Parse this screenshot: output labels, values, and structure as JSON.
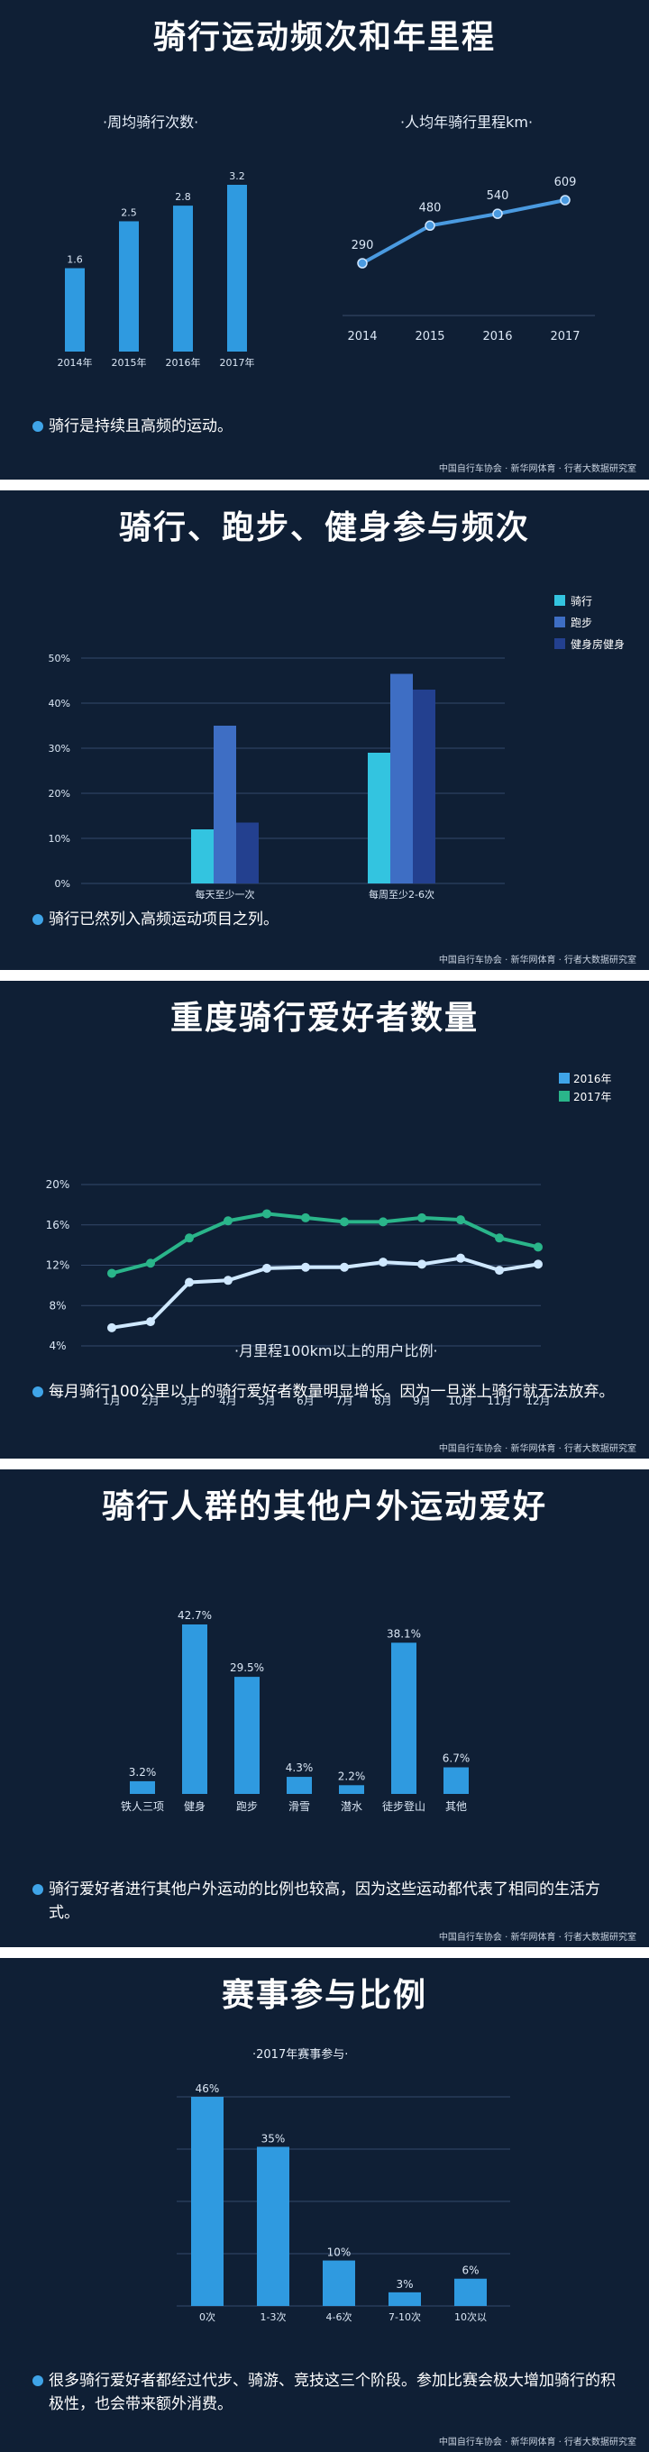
{
  "source": "中国自行车协会 · 新华网体育 · 行者大数据研究室",
  "sections": [
    {
      "title": "骑行运动频次和年里程",
      "note": "骑行是持续且高频的运动。",
      "left_sub": "·周均骑行次数·",
      "right_sub": "·人均年骑行里程km·"
    },
    {
      "title": "骑行、跑步、健身参与频次",
      "note": "骑行已然列入高频运动项目之列。"
    },
    {
      "title": "重度骑行爱好者数量",
      "note": "每月骑行100公里以上的骑行爱好者数量明显增长。因为一旦迷上骑行就无法放弃。",
      "sub": "·月里程100km以上的用户比例·"
    },
    {
      "title": "骑行人群的其他户外运动爱好",
      "note": "骑行爱好者进行其他户外运动的比例也较高，因为这些运动都代表了相同的生活方式。"
    },
    {
      "title": "赛事参与比例",
      "note": "很多骑行爱好者都经过代步、骑游、竞技这三个阶段。参加比赛会极大增加骑行的积极性，也会带来额外消费。",
      "sub": "·2017年赛事参与·"
    }
  ],
  "chart_data": [
    {
      "type": "bar",
      "categories": [
        "2014年",
        "2015年",
        "2016年",
        "2017年"
      ],
      "values": [
        1.6,
        2.5,
        2.8,
        3.2
      ],
      "labels": [
        "1.6",
        "2.5",
        "2.8",
        "3.2"
      ],
      "ylim": [
        0,
        3.2
      ],
      "color": "#2f9ae0"
    },
    {
      "type": "line",
      "x": [
        "2014",
        "2015",
        "2016",
        "2017"
      ],
      "values": [
        290,
        480,
        540,
        609
      ],
      "ylim": [
        290,
        609
      ],
      "color": "#4a9ae0"
    },
    {
      "type": "bar",
      "categories": [
        "每天至少一次",
        "每周至少2-6次"
      ],
      "series": [
        {
          "name": "骑行",
          "values": [
            12,
            29
          ],
          "color": "#33c4e0"
        },
        {
          "name": "跑步",
          "values": [
            35,
            46.5
          ],
          "color": "#3e6ec4"
        },
        {
          "name": "健身房健身",
          "values": [
            13.5,
            43
          ],
          "color": "#23408f"
        }
      ],
      "yticks": [
        "0%",
        "10%",
        "20%",
        "30%",
        "40%",
        "50%"
      ],
      "ylim": [
        0,
        50
      ],
      "legend": "top-right",
      "grid": true
    },
    {
      "type": "line",
      "categories": [
        "1月",
        "2月",
        "3月",
        "4月",
        "5月",
        "6月",
        "7月",
        "8月",
        "9月",
        "10月",
        "11月",
        "12月"
      ],
      "series": [
        {
          "name": "2016年",
          "values": [
            5.8,
            6.4,
            10.3,
            10.5,
            11.7,
            11.8,
            11.8,
            12.3,
            12.1,
            12.7,
            11.5,
            12.1
          ],
          "color": "#cfe8ff"
        },
        {
          "name": "2017年",
          "values": [
            11.2,
            12.2,
            14.7,
            16.4,
            17.1,
            16.7,
            16.3,
            16.3,
            16.7,
            16.5,
            14.7,
            13.8
          ],
          "color": "#2ab58a"
        }
      ],
      "legend_colors": [
        "#3fa4e8",
        "#2ab58a"
      ],
      "yticks": [
        "4%",
        "8%",
        "12%",
        "16%",
        "20%"
      ],
      "ylim": [
        4,
        20
      ],
      "legend": "top-right",
      "grid": true
    },
    {
      "type": "bar",
      "categories": [
        "铁人三项",
        "健身",
        "跑步",
        "滑雪",
        "潜水",
        "徒步登山",
        "其他"
      ],
      "values": [
        3.2,
        42.7,
        29.5,
        4.3,
        2.2,
        38.1,
        6.7
      ],
      "labels": [
        "3.2%",
        "42.7%",
        "29.5%",
        "4.3%",
        "2.2%",
        "38.1%",
        "6.7%"
      ],
      "ylim": [
        0,
        42.7
      ],
      "color": "#2f9ae0"
    },
    {
      "type": "bar",
      "categories": [
        "0次",
        "1-3次",
        "4-6次",
        "7-10次",
        "10次以"
      ],
      "values": [
        46,
        35,
        10,
        3,
        6
      ],
      "labels": [
        "46%",
        "35%",
        "10%",
        "3%",
        "6%"
      ],
      "ylim": [
        0,
        46
      ],
      "grid": true,
      "color": "#2f9ae0"
    }
  ]
}
